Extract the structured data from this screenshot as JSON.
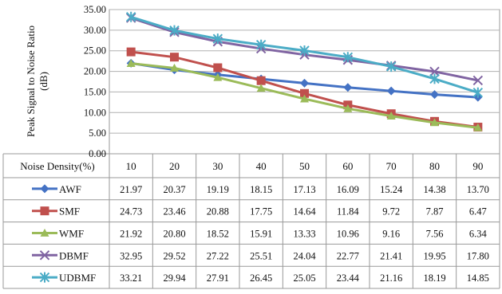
{
  "chart_data": {
    "type": "line",
    "ylabel": "Peak Signal to Noise Ratio (dB)",
    "ylabel_lines": [
      "Peak Signal to Noise Ratio",
      "(dB)"
    ],
    "xlabel": "Noise Density(%)",
    "ylim": [
      0,
      35
    ],
    "yticks": [
      "0.00",
      "5.00",
      "10.00",
      "15.00",
      "20.00",
      "25.00",
      "30.00",
      "35.00"
    ],
    "grid": true,
    "legend_placement": "data-table-rows",
    "categories": [
      "10",
      "20",
      "30",
      "40",
      "50",
      "60",
      "70",
      "80",
      "90"
    ],
    "series": [
      {
        "name": "AWF",
        "color": "#4472c4",
        "marker": "diamond",
        "values": [
          21.97,
          20.37,
          19.19,
          18.15,
          17.13,
          16.09,
          15.24,
          14.38,
          13.7
        ],
        "labels": [
          "21.97",
          "20.37",
          "19.19",
          "18.15",
          "17.13",
          "16.09",
          "15.24",
          "14.38",
          "13.70"
        ]
      },
      {
        "name": "SMF",
        "color": "#c0504d",
        "marker": "square",
        "values": [
          24.73,
          23.46,
          20.88,
          17.75,
          14.64,
          11.84,
          9.72,
          7.87,
          6.47
        ],
        "labels": [
          "24.73",
          "23.46",
          "20.88",
          "17.75",
          "14.64",
          "11.84",
          "9.72",
          "7.87",
          "6.47"
        ]
      },
      {
        "name": "WMF",
        "color": "#9bbb59",
        "marker": "triangle",
        "values": [
          21.92,
          20.8,
          18.52,
          15.91,
          13.33,
          10.96,
          9.16,
          7.56,
          6.34
        ],
        "labels": [
          "21.92",
          "20.80",
          "18.52",
          "15.91",
          "13.33",
          "10.96",
          "9.16",
          "7.56",
          "6.34"
        ]
      },
      {
        "name": "DBMF",
        "color": "#8064a2",
        "marker": "x",
        "values": [
          32.95,
          29.52,
          27.22,
          25.51,
          24.04,
          22.77,
          21.41,
          19.95,
          17.8
        ],
        "labels": [
          "32.95",
          "29.52",
          "27.22",
          "25.51",
          "24.04",
          "22.77",
          "21.41",
          "19.95",
          "17.80"
        ]
      },
      {
        "name": "UDBMF",
        "color": "#4bacc6",
        "marker": "star",
        "values": [
          33.21,
          29.94,
          27.91,
          26.45,
          25.05,
          23.44,
          21.16,
          18.19,
          14.85
        ],
        "labels": [
          "33.21",
          "29.94",
          "27.91",
          "26.45",
          "25.05",
          "23.44",
          "21.16",
          "18.19",
          "14.85"
        ]
      }
    ]
  }
}
